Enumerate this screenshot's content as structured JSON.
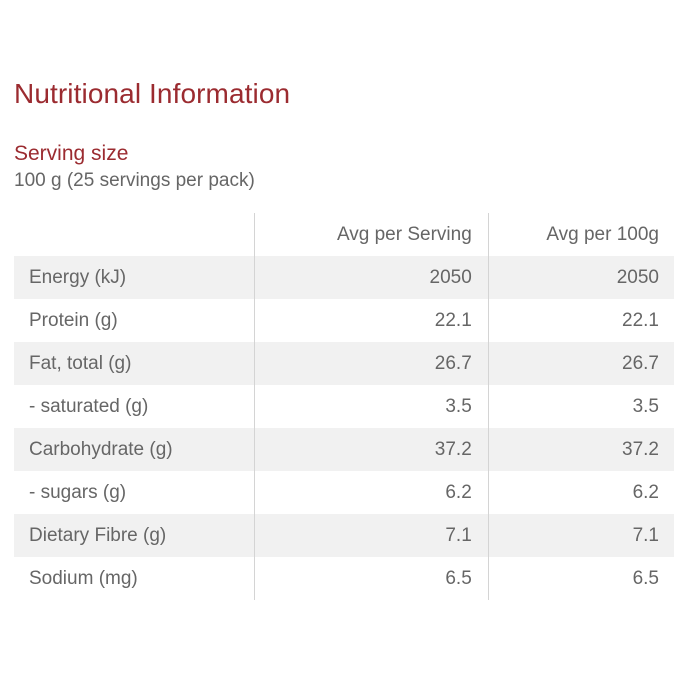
{
  "page": {
    "title": "Nutritional Information",
    "serving_label": "Serving size",
    "serving_value": "100 g (25 servings per pack)"
  },
  "table": {
    "headers": [
      "",
      "Avg per Serving",
      "Avg per 100g"
    ],
    "rows": [
      {
        "name": "Energy (kJ)",
        "serving": "2050",
        "per100": "2050"
      },
      {
        "name": "Protein (g)",
        "serving": "22.1",
        "per100": "22.1"
      },
      {
        "name": "Fat, total (g)",
        "serving": "26.7",
        "per100": "26.7"
      },
      {
        "name": "- saturated (g)",
        "serving": "3.5",
        "per100": "3.5"
      },
      {
        "name": "Carbohydrate (g)",
        "serving": "37.2",
        "per100": "37.2"
      },
      {
        "name": "- sugars (g)",
        "serving": "6.2",
        "per100": "6.2"
      },
      {
        "name": "Dietary Fibre (g)",
        "serving": "7.1",
        "per100": "7.1"
      },
      {
        "name": "Sodium (mg)",
        "serving": "6.5",
        "per100": "6.5"
      }
    ]
  },
  "colors": {
    "accent": "#9b2b30",
    "text": "#666666",
    "row_stripe": "#f1f1f1",
    "divider": "#d4d4d4"
  }
}
